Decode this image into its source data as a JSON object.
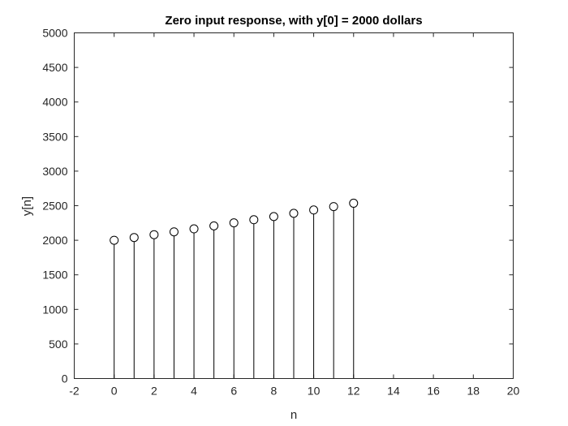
{
  "chart_data": {
    "type": "stem",
    "title": "Zero input response, with y[0] = 2000 dollars",
    "xlabel": "n",
    "ylabel": "y[n]",
    "xlim": [
      -2,
      20
    ],
    "ylim": [
      0,
      5000
    ],
    "xticks": [
      -2,
      0,
      2,
      4,
      6,
      8,
      10,
      12,
      14,
      16,
      18,
      20
    ],
    "yticks": [
      0,
      500,
      1000,
      1500,
      2000,
      2500,
      3000,
      3500,
      4000,
      4500,
      5000
    ],
    "xtick_labels": [
      "-2",
      "0",
      "2",
      "4",
      "6",
      "8",
      "10",
      "12",
      "14",
      "16",
      "18",
      "20"
    ],
    "ytick_labels": [
      "0",
      "500",
      "1000",
      "1500",
      "2000",
      "2500",
      "3000",
      "3500",
      "4000",
      "4500",
      "5000"
    ],
    "grid": false,
    "box": true,
    "marker": "open-circle",
    "colors": {
      "stem": "#000000",
      "axes": "#262626",
      "background": "#ffffff"
    },
    "x": [
      0,
      1,
      2,
      3,
      4,
      5,
      6,
      7,
      8,
      9,
      10,
      11,
      12
    ],
    "y": [
      2000,
      2040,
      2081,
      2122,
      2165,
      2208,
      2252,
      2297,
      2343,
      2390,
      2438,
      2487,
      2536
    ]
  }
}
